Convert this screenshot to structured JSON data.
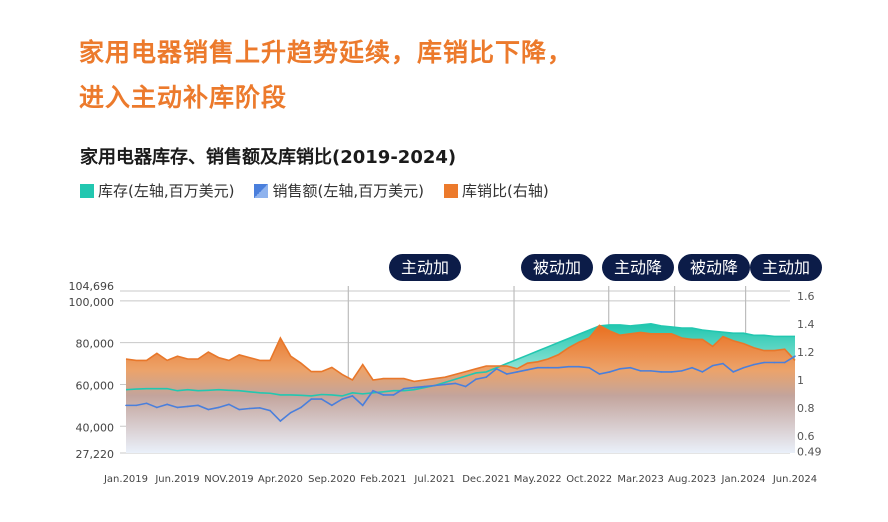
{
  "title_lines": [
    "家用电器销售上升趋势延续，库销比下降，",
    "进入主动补库阶段"
  ],
  "chart_data": {
    "type": "area",
    "title": "家用电器库存、销售额及库销比(2019-2024)",
    "legend": [
      {
        "name": "库存(左轴,百万美元)",
        "color": "#22c7b0"
      },
      {
        "name": "销售额(左轴,百万美元)",
        "color": "#4a7fdc"
      },
      {
        "name": "库销比(右轴)",
        "color": "#ec7a2c"
      }
    ],
    "x_tick_labels": [
      "Jan.2019",
      "Jun.2019",
      "NOV.2019",
      "Apr.2020",
      "Sep.2020",
      "Feb.2021",
      "Jul.2021",
      "Dec.2021",
      "May.2022",
      "Oct.2022",
      "Mar.2023",
      "Aug.2023",
      "Jan.2024",
      "Jun.2024"
    ],
    "x_range": [
      "Jan.2019",
      "Jun.2024"
    ],
    "left_axis": {
      "ylim": [
        27220,
        104696
      ],
      "ticks": [
        "27,220",
        "40,000",
        "60,000",
        "80,000",
        "100,000",
        "104,696"
      ],
      "tick_values": [
        27220,
        40000,
        60000,
        80000,
        100000,
        104696
      ]
    },
    "right_axis": {
      "ylim": [
        0.49,
        1.6
      ],
      "ticks": [
        "0.49",
        "0.6",
        "0.8",
        "1",
        "1.2",
        "1.4",
        "1.6"
      ],
      "tick_values": [
        0.49,
        0.6,
        0.8,
        1,
        1.2,
        1.4,
        1.6
      ]
    },
    "phases": [
      "主动加",
      "被动加",
      "主动降",
      "被动降",
      "主动加"
    ],
    "series": [
      {
        "name": "库存",
        "axis": "left",
        "values": [
          57500,
          57800,
          58000,
          58000,
          58000,
          57000,
          57500,
          57000,
          57200,
          57500,
          57200,
          57000,
          56500,
          56000,
          55800,
          55000,
          55000,
          54800,
          54500,
          55200,
          55000,
          54500,
          56000,
          55500,
          56000,
          56500,
          57000,
          57000,
          57500,
          58500,
          59500,
          61000,
          62500,
          64000,
          65500,
          66000,
          68000,
          70000,
          72000,
          74000,
          76000,
          78000,
          80000,
          82000,
          84000,
          86000,
          88000,
          88500,
          88500,
          88000,
          88500,
          89000,
          88000,
          87500,
          87000,
          87000,
          86000,
          85500,
          85000,
          84500,
          84500,
          83500,
          83500,
          83000,
          83000,
          83000
        ]
      },
      {
        "name": "销售额",
        "axis": "left",
        "values": [
          50000,
          50000,
          51000,
          49000,
          50500,
          49000,
          49500,
          50000,
          48000,
          49000,
          50500,
          48000,
          48500,
          48800,
          47500,
          42500,
          46500,
          49000,
          53000,
          53000,
          50000,
          53000,
          54500,
          50000,
          57000,
          55000,
          55000,
          58000,
          58500,
          59000,
          59500,
          60000,
          60500,
          59000,
          62500,
          63500,
          67500,
          65000,
          66000,
          67000,
          68000,
          68000,
          68000,
          68500,
          68500,
          68000,
          65000,
          66000,
          67500,
          68000,
          66500,
          66500,
          66000,
          66000,
          66500,
          68000,
          66000,
          69000,
          70000,
          66000,
          68000,
          69500,
          70500,
          70500,
          70500,
          73500
        ]
      },
      {
        "name": "库销比",
        "axis": "right",
        "values": [
          1.15,
          1.14,
          1.14,
          1.19,
          1.14,
          1.17,
          1.15,
          1.15,
          1.2,
          1.16,
          1.14,
          1.18,
          1.16,
          1.14,
          1.14,
          1.3,
          1.17,
          1.12,
          1.06,
          1.06,
          1.09,
          1.04,
          1.0,
          1.11,
          1.0,
          1.01,
          1.01,
          1.01,
          0.99,
          1.0,
          1.01,
          1.02,
          1.04,
          1.06,
          1.08,
          1.1,
          1.1,
          1.1,
          1.08,
          1.12,
          1.13,
          1.15,
          1.18,
          1.23,
          1.27,
          1.3,
          1.39,
          1.35,
          1.32,
          1.33,
          1.34,
          1.33,
          1.33,
          1.33,
          1.3,
          1.29,
          1.29,
          1.24,
          1.31,
          1.28,
          1.26,
          1.23,
          1.21,
          1.21,
          1.22,
          1.14
        ]
      }
    ]
  }
}
